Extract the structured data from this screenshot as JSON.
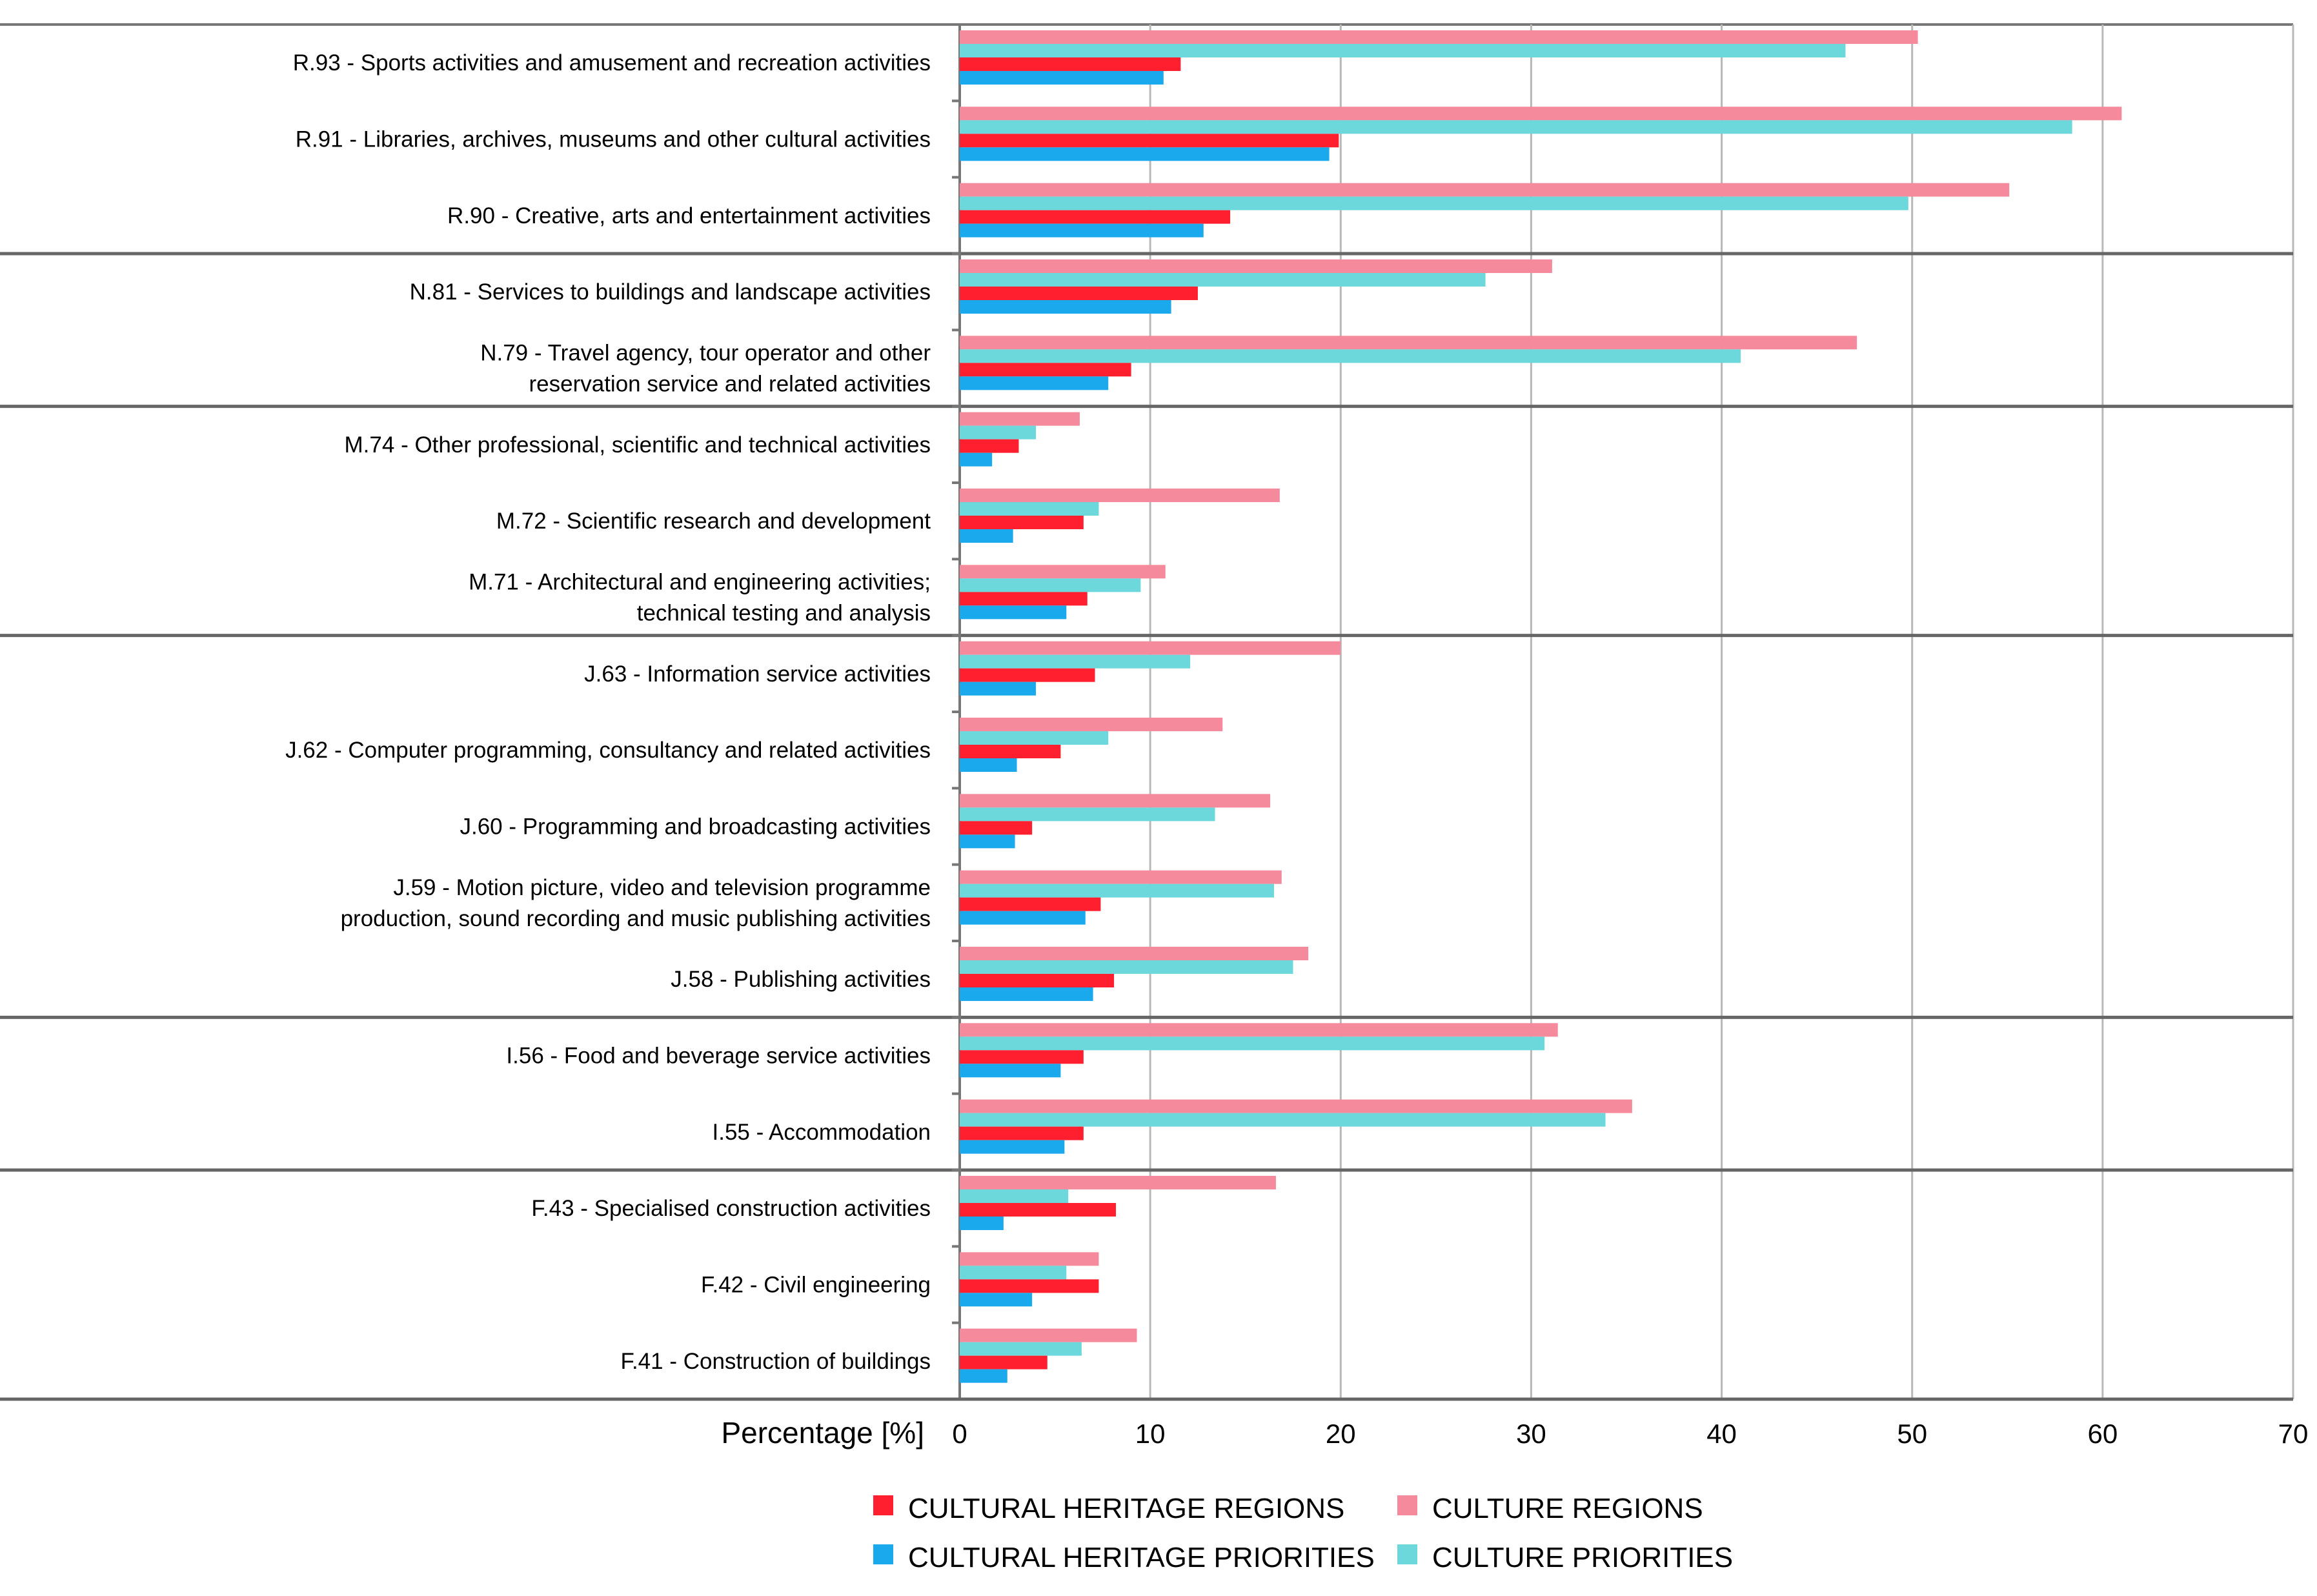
{
  "chart_data": {
    "type": "bar",
    "orientation": "horizontal",
    "xlabel": "Percentage [%]",
    "xlim": [
      0,
      70
    ],
    "xticks": [
      0,
      10,
      20,
      30,
      40,
      50,
      60,
      70
    ],
    "grid": true,
    "legend_position": "bottom",
    "categories": [
      [
        "R.93 - Sports activities and amusement and recreation activities"
      ],
      [
        "R.91 - Libraries, archives, museums and other cultural activities"
      ],
      [
        "R.90 - Creative, arts and entertainment activities"
      ],
      [
        "N.81 - Services to buildings and landscape activities"
      ],
      [
        "N.79 - Travel agency, tour operator and other",
        "reservation service and related activities"
      ],
      [
        "M.74 - Other professional, scientific and technical activities"
      ],
      [
        "M.72 - Scientific research and development"
      ],
      [
        "M.71 - Architectural and engineering activities;",
        "technical testing and analysis"
      ],
      [
        "J.63 - Information service activities"
      ],
      [
        "J.62 - Computer programming, consultancy and related activities"
      ],
      [
        "J.60 - Programming and broadcasting activities"
      ],
      [
        "J.59 - Motion picture, video and television programme",
        "production, sound recording and music publishing activities"
      ],
      [
        "J.58 - Publishing activities"
      ],
      [
        "I.56 - Food and beverage service activities"
      ],
      [
        "I.55 - Accommodation"
      ],
      [
        "F.43 - Specialised construction activities"
      ],
      [
        "F.42 - Civil engineering"
      ],
      [
        "F.41 - Construction of buildings"
      ]
    ],
    "group_breaks_after": [
      2,
      4,
      7,
      12,
      14
    ],
    "series": [
      {
        "name": "CULTURE REGIONS",
        "color": "#f48a9c",
        "values": [
          50.3,
          61.0,
          55.1,
          31.1,
          47.1,
          6.3,
          16.8,
          10.8,
          20.0,
          13.8,
          16.3,
          16.9,
          18.3,
          31.4,
          35.3,
          16.6,
          7.3,
          9.3
        ]
      },
      {
        "name": "CULTURE PRIORITIES",
        "color": "#6dd8dc",
        "values": [
          46.5,
          58.4,
          49.8,
          27.6,
          41.0,
          4.0,
          7.3,
          9.5,
          12.1,
          7.8,
          13.4,
          16.5,
          17.5,
          30.7,
          33.9,
          5.7,
          5.6,
          6.4
        ]
      },
      {
        "name": "CULTURAL HERITAGE REGIONS",
        "color": "#ff1f2e",
        "values": [
          11.6,
          19.9,
          14.2,
          12.5,
          9.0,
          3.1,
          6.5,
          6.7,
          7.1,
          5.3,
          3.8,
          7.4,
          8.1,
          6.5,
          6.5,
          8.2,
          7.3,
          4.6
        ]
      },
      {
        "name": "CULTURAL HERITAGE PRIORITIES",
        "color": "#1ba9ee",
        "values": [
          10.7,
          19.4,
          12.8,
          11.1,
          7.8,
          1.7,
          2.8,
          5.6,
          4.0,
          3.0,
          2.9,
          6.6,
          7.0,
          5.3,
          5.5,
          2.3,
          3.8,
          2.5
        ]
      }
    ],
    "legend": [
      {
        "label": "CULTURAL HERITAGE REGIONS",
        "color": "#ff1f2e"
      },
      {
        "label": "CULTURE REGIONS",
        "color": "#f48a9c"
      },
      {
        "label": "CULTURAL HERITAGE PRIORITIES",
        "color": "#1ba9ee"
      },
      {
        "label": "CULTURE PRIORITIES",
        "color": "#6dd8dc"
      }
    ]
  }
}
